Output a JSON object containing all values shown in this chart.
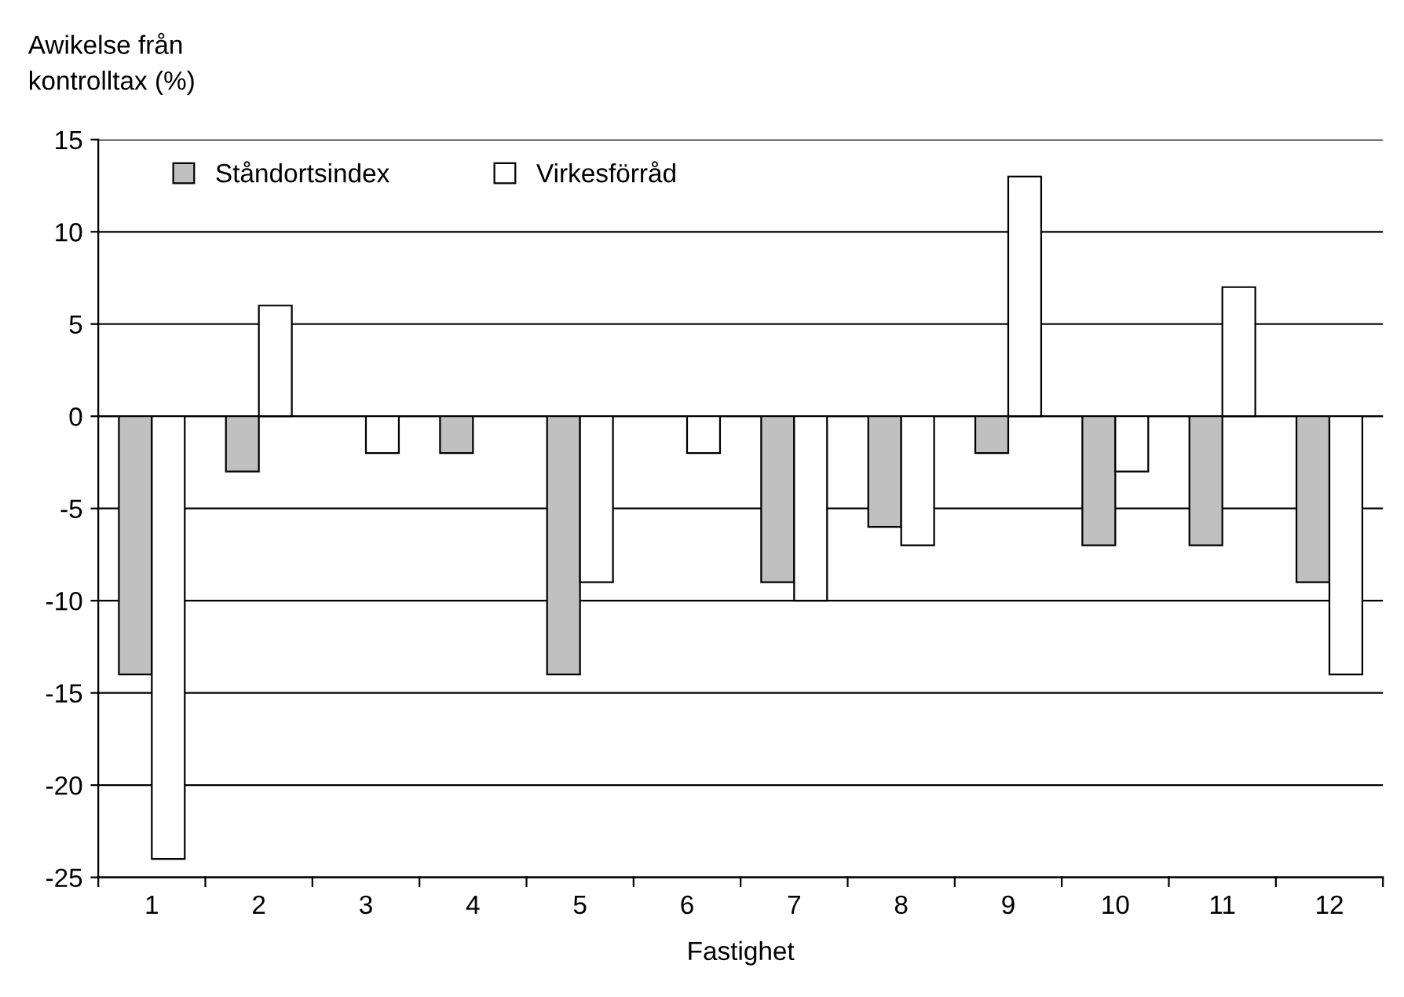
{
  "chart_data": {
    "type": "bar",
    "ylabel": "Awikelse från\nkontrolltax (%)",
    "xlabel": "Fastighet",
    "categories": [
      "1",
      "2",
      "3",
      "4",
      "5",
      "6",
      "7",
      "8",
      "9",
      "10",
      "11",
      "12"
    ],
    "series": [
      {
        "name": "Ståndortsindex",
        "color": "#c0c0c0",
        "values": [
          -14,
          -3,
          null,
          -2,
          -14,
          null,
          -9,
          -6,
          -2,
          -7,
          -7,
          -9
        ]
      },
      {
        "name": "Virkesförråd",
        "color": "#ffffff",
        "values": [
          -24,
          6,
          -2,
          null,
          -9,
          -2,
          -10,
          -7,
          13,
          -3,
          7,
          -14
        ]
      }
    ],
    "ylim": [
      -25,
      15
    ],
    "yticks": [
      -25,
      -20,
      -15,
      -10,
      -5,
      0,
      5,
      10,
      15
    ],
    "grid": "y",
    "legend": "top left"
  }
}
